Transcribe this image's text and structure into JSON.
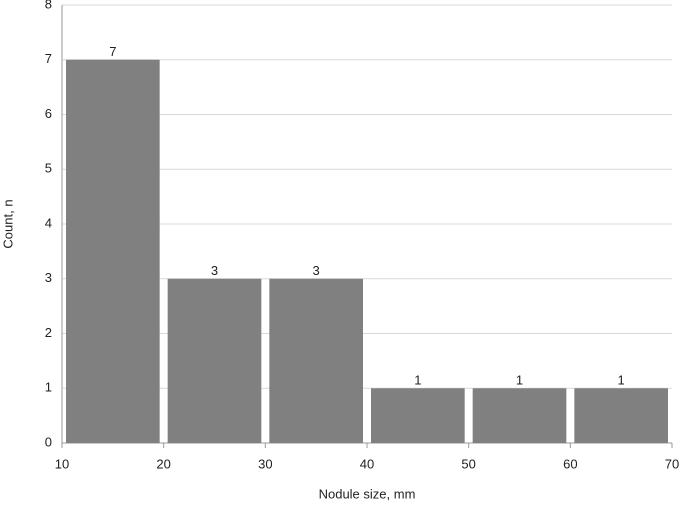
{
  "chart_data": {
    "type": "histogram",
    "x_label": "Nodule size, mm",
    "y_label": "Count, n",
    "bins": [
      10,
      20,
      30,
      40,
      50,
      60,
      70
    ],
    "counts": [
      7,
      3,
      3,
      1,
      1,
      1
    ],
    "color": "#808080",
    "xlim": [
      10,
      70
    ],
    "xticks": [
      10,
      20,
      30,
      40,
      50,
      60,
      70
    ],
    "ylim": [
      0,
      8
    ],
    "yticks": [
      0,
      1,
      2,
      3,
      4,
      5,
      6,
      7,
      8
    ],
    "grid": true
  }
}
